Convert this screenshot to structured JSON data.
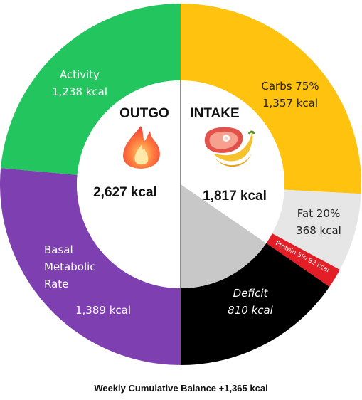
{
  "chart_data": {
    "type": "donut",
    "outgo": {
      "heading": "OUTGO",
      "total_label": "2,627 kcal",
      "icon": "fire-icon",
      "segments": [
        {
          "name": "Activity",
          "value_label": "1,238 kcal",
          "value": 1238,
          "color": "#22c55e"
        },
        {
          "name": "Basal Metabolic Rate",
          "value_label": "1,389 kcal",
          "value": 1389,
          "color": "#7e3fb0"
        }
      ]
    },
    "intake": {
      "heading": "INTAKE",
      "total_label": "1,817 kcal",
      "icon": "food-icon",
      "segments": [
        {
          "name": "Carbs 75%",
          "value_label": "1,357 kcal",
          "value": 1357,
          "color": "#ffc20e"
        },
        {
          "name": "Fat 20%",
          "value_label": "368 kcal",
          "value": 368,
          "color": "#e6e6e6"
        },
        {
          "name": "Protein 5% 92 kcal",
          "value_label": "",
          "value": 92,
          "color": "#e41e26"
        },
        {
          "name": "Deficit",
          "value_label": "810 kcal",
          "value": 810,
          "color": "#000000"
        }
      ]
    },
    "footer": "Weekly Cumulative Balance +1,365 kcal"
  }
}
